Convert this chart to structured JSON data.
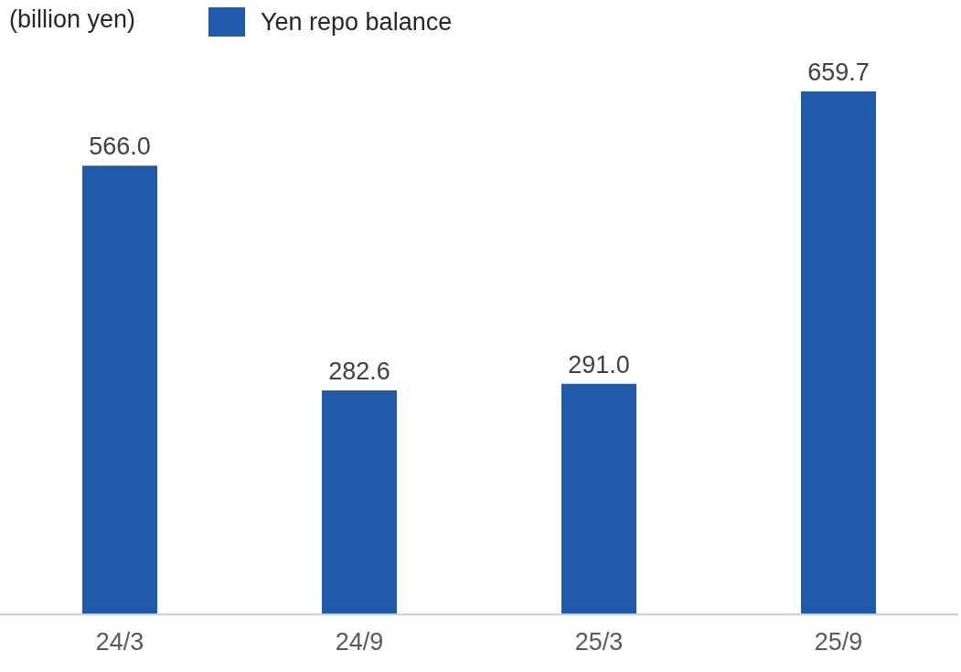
{
  "chart_data": {
    "type": "bar",
    "ylabel": "(billion yen)",
    "categories": [
      "24/3",
      "24/9",
      "25/3",
      "25/9"
    ],
    "series": [
      {
        "name": "Yen repo balance",
        "color": "#1f5aad",
        "values": [
          566.0,
          282.6,
          291.0,
          659.7
        ],
        "value_labels": [
          "566.0",
          "282.6",
          "291.0",
          "659.7"
        ]
      }
    ],
    "legend": "top",
    "grid": false
  }
}
